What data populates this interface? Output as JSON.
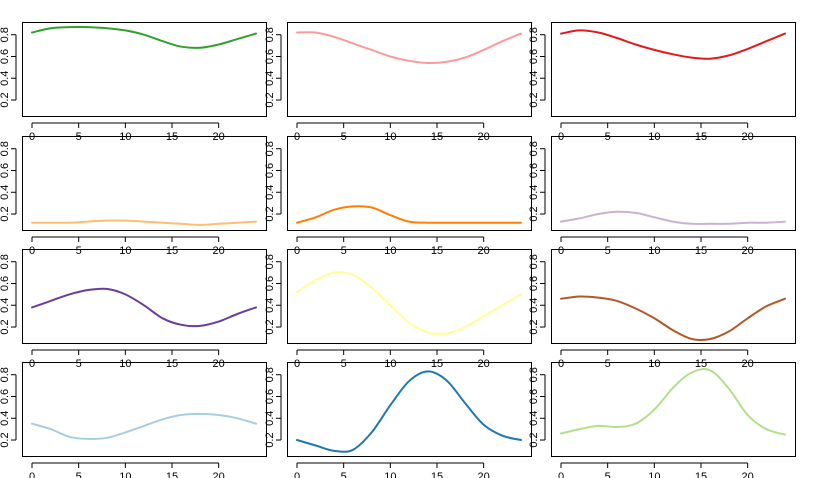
{
  "chart_data": {
    "type": "line",
    "layout": {
      "rows": 4,
      "cols": 3
    },
    "x_ticks": [
      0,
      5,
      10,
      15,
      20
    ],
    "y_ticks": [
      0.2,
      0.4,
      0.6,
      0.8
    ],
    "x_tick_labels": [
      "0",
      "5",
      "10",
      "15",
      "20"
    ],
    "y_tick_labels": [
      "0.2",
      "0.4",
      "0.6",
      "0.8"
    ],
    "xlim": [
      0,
      24
    ],
    "ylim": [
      0.09,
      0.88
    ],
    "panels": [
      {
        "color": "#33a02c",
        "x": [
          0,
          2,
          4,
          6,
          8,
          10,
          12,
          14,
          16,
          18,
          20,
          22,
          24
        ],
        "y": [
          0.82,
          0.86,
          0.87,
          0.87,
          0.86,
          0.84,
          0.8,
          0.74,
          0.69,
          0.68,
          0.71,
          0.76,
          0.81
        ]
      },
      {
        "color": "#fb9a99",
        "x": [
          0,
          2,
          4,
          6,
          8,
          10,
          12,
          14,
          16,
          18,
          20,
          22,
          24
        ],
        "y": [
          0.82,
          0.82,
          0.78,
          0.72,
          0.66,
          0.6,
          0.56,
          0.54,
          0.55,
          0.59,
          0.66,
          0.74,
          0.81
        ]
      },
      {
        "color": "#e31a1c",
        "x": [
          0,
          2,
          4,
          6,
          8,
          10,
          12,
          14,
          16,
          18,
          20,
          22,
          24
        ],
        "y": [
          0.81,
          0.84,
          0.82,
          0.77,
          0.71,
          0.66,
          0.62,
          0.59,
          0.58,
          0.61,
          0.67,
          0.74,
          0.81
        ]
      },
      {
        "color": "#fdbf6f",
        "x": [
          0,
          2,
          4,
          6,
          8,
          10,
          12,
          14,
          16,
          18,
          20,
          22,
          24
        ],
        "y": [
          0.12,
          0.12,
          0.12,
          0.13,
          0.14,
          0.14,
          0.13,
          0.12,
          0.11,
          0.1,
          0.11,
          0.12,
          0.13
        ]
      },
      {
        "color": "#ff7f00",
        "x": [
          0,
          2,
          4,
          6,
          8,
          10,
          12,
          14,
          16,
          18,
          20,
          22,
          24
        ],
        "y": [
          0.12,
          0.17,
          0.24,
          0.27,
          0.26,
          0.19,
          0.13,
          0.12,
          0.12,
          0.12,
          0.12,
          0.12,
          0.12
        ]
      },
      {
        "color": "#cab2d6",
        "x": [
          0,
          2,
          4,
          6,
          8,
          10,
          12,
          14,
          16,
          18,
          20,
          22,
          24
        ],
        "y": [
          0.13,
          0.16,
          0.2,
          0.22,
          0.21,
          0.17,
          0.13,
          0.11,
          0.11,
          0.11,
          0.12,
          0.12,
          0.13
        ]
      },
      {
        "color": "#6a3d9a",
        "x": [
          0,
          2,
          4,
          6,
          8,
          10,
          12,
          14,
          16,
          18,
          20,
          22,
          24
        ],
        "y": [
          0.38,
          0.44,
          0.5,
          0.54,
          0.55,
          0.5,
          0.4,
          0.28,
          0.22,
          0.21,
          0.25,
          0.32,
          0.38
        ]
      },
      {
        "color": "#ffff99",
        "x": [
          0,
          2,
          4,
          6,
          8,
          10,
          12,
          14,
          16,
          18,
          20,
          22,
          24
        ],
        "y": [
          0.52,
          0.63,
          0.7,
          0.68,
          0.56,
          0.4,
          0.24,
          0.15,
          0.14,
          0.2,
          0.3,
          0.4,
          0.5
        ]
      },
      {
        "color": "#b15928",
        "x": [
          0,
          2,
          4,
          6,
          8,
          10,
          12,
          14,
          16,
          18,
          20,
          22,
          24
        ],
        "y": [
          0.46,
          0.48,
          0.47,
          0.44,
          0.37,
          0.28,
          0.17,
          0.09,
          0.09,
          0.16,
          0.28,
          0.39,
          0.46
        ]
      },
      {
        "color": "#a6cee3",
        "x": [
          0,
          2,
          4,
          6,
          8,
          10,
          12,
          14,
          16,
          18,
          20,
          22,
          24
        ],
        "y": [
          0.35,
          0.3,
          0.23,
          0.21,
          0.22,
          0.27,
          0.33,
          0.39,
          0.43,
          0.44,
          0.43,
          0.4,
          0.35
        ]
      },
      {
        "color": "#1f78b4",
        "x": [
          0,
          2,
          4,
          6,
          8,
          10,
          12,
          14,
          16,
          18,
          20,
          22,
          24
        ],
        "y": [
          0.2,
          0.15,
          0.1,
          0.11,
          0.27,
          0.52,
          0.74,
          0.83,
          0.75,
          0.54,
          0.34,
          0.24,
          0.2
        ]
      },
      {
        "color": "#b2df8a",
        "x": [
          0,
          2,
          4,
          6,
          8,
          10,
          12,
          14,
          16,
          18,
          20,
          22,
          24
        ],
        "y": [
          0.26,
          0.3,
          0.33,
          0.32,
          0.35,
          0.48,
          0.68,
          0.82,
          0.84,
          0.67,
          0.43,
          0.3,
          0.25
        ]
      }
    ]
  }
}
